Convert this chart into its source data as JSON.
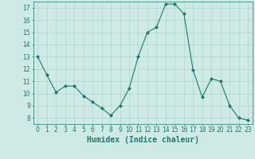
{
  "x": [
    0,
    1,
    2,
    3,
    4,
    5,
    6,
    7,
    8,
    9,
    10,
    11,
    12,
    13,
    14,
    15,
    16,
    17,
    18,
    19,
    20,
    21,
    22,
    23
  ],
  "y": [
    13.0,
    11.5,
    10.1,
    10.6,
    10.6,
    9.8,
    9.3,
    8.8,
    8.2,
    9.0,
    10.4,
    13.0,
    15.0,
    15.4,
    17.3,
    17.3,
    16.5,
    11.9,
    9.7,
    11.2,
    11.0,
    9.0,
    8.0,
    7.8
  ],
  "line_color": "#1a7a6e",
  "marker": "D",
  "marker_size": 2,
  "bg_color": "#ceeae6",
  "grid_color": "#b0d4cf",
  "tick_color": "#1a7a6e",
  "xlabel": "Humidex (Indice chaleur)",
  "xlabel_fontsize": 7,
  "ylim": [
    7.5,
    17.5
  ],
  "yticks": [
    8,
    9,
    10,
    11,
    12,
    13,
    14,
    15,
    16,
    17
  ],
  "xlim": [
    -0.5,
    23.5
  ],
  "xticks": [
    0,
    1,
    2,
    3,
    4,
    5,
    6,
    7,
    8,
    9,
    10,
    11,
    12,
    13,
    14,
    15,
    16,
    17,
    18,
    19,
    20,
    21,
    22,
    23
  ]
}
